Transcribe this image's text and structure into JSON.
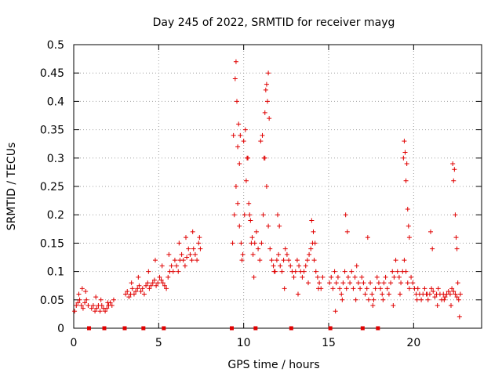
{
  "chart_data": {
    "type": "scatter",
    "title": "Day 245 of 2022, SRMTID for receiver mayg",
    "xlabel": "GPS time / hours",
    "ylabel": "SRMTID / TECUs",
    "xlim": [
      0,
      24
    ],
    "ylim": [
      0,
      0.5
    ],
    "xticks": [
      0,
      5,
      10,
      15,
      20
    ],
    "yticks": [
      0,
      0.05,
      0.1,
      0.15,
      0.2,
      0.25,
      0.3,
      0.35,
      0.4,
      0.45,
      0.5
    ],
    "grid": true,
    "marker": "+",
    "color": "#e00000",
    "gap_markers_x": [
      0.9,
      1.8,
      3.0,
      4.1,
      5.3,
      9.3,
      10.7,
      12.8,
      15.1,
      17.0,
      17.9
    ],
    "series": [
      {
        "name": "SRMTID",
        "x": [
          0.05,
          0.15,
          0.25,
          0.35,
          0.45,
          0.55,
          0.65,
          0.75,
          0.85,
          1.05,
          1.15,
          1.25,
          1.35,
          1.45,
          1.55,
          1.65,
          1.75,
          1.85,
          1.95,
          2.05,
          2.15,
          2.25,
          2.35,
          3.05,
          3.15,
          3.25,
          3.35,
          3.45,
          3.55,
          3.65,
          3.75,
          3.85,
          3.95,
          4.05,
          4.15,
          4.25,
          4.35,
          4.45,
          4.55,
          4.65,
          4.75,
          4.85,
          4.95,
          5.05,
          5.15,
          5.25,
          5.35,
          5.45,
          5.55,
          5.65,
          5.75,
          5.85,
          5.95,
          6.05,
          6.15,
          6.25,
          6.35,
          6.45,
          6.55,
          6.65,
          6.75,
          6.85,
          6.95,
          7.05,
          7.15,
          7.25,
          7.35,
          7.45,
          9.35,
          9.45,
          9.55,
          9.65,
          9.75,
          9.85,
          9.95,
          10.05,
          10.15,
          10.25,
          10.35,
          10.45,
          10.55,
          10.65,
          10.75,
          10.85,
          10.95,
          11.05,
          11.15,
          11.25,
          11.35,
          11.45,
          11.55,
          11.65,
          11.75,
          11.85,
          11.95,
          12.05,
          12.15,
          12.25,
          12.35,
          12.45,
          12.55,
          12.65,
          12.75,
          12.85,
          12.95,
          13.05,
          13.15,
          13.25,
          13.35,
          13.45,
          13.55,
          13.65,
          13.75,
          13.85,
          13.95,
          14.05,
          14.15,
          14.25,
          14.35,
          14.45,
          14.55,
          14.65,
          15.05,
          15.15,
          15.25,
          15.35,
          15.45,
          15.55,
          15.65,
          15.75,
          15.85,
          15.95,
          16.05,
          16.15,
          16.25,
          16.35,
          16.45,
          16.55,
          16.65,
          16.75,
          16.85,
          16.95,
          17.05,
          17.15,
          17.25,
          17.35,
          17.45,
          17.55,
          17.65,
          17.75,
          17.85,
          17.95,
          18.05,
          18.15,
          18.25,
          18.35,
          18.45,
          18.55,
          18.65,
          18.75,
          18.85,
          18.95,
          19.05,
          19.15,
          19.25,
          19.35,
          19.45,
          19.55,
          19.65,
          19.75,
          19.85,
          19.95,
          20.05,
          20.15,
          20.25,
          20.35,
          20.45,
          20.55,
          20.65,
          20.75,
          20.85,
          20.95,
          21.05,
          21.15,
          21.25,
          21.35,
          21.45,
          21.55,
          21.65,
          21.75,
          21.85,
          21.95,
          22.05,
          22.15,
          22.25,
          22.35,
          22.45,
          22.55,
          22.65,
          22.75,
          9.4,
          9.5,
          9.55,
          9.6,
          9.65,
          9.7,
          9.75,
          9.8,
          10.0,
          10.1,
          10.2,
          10.3,
          10.4,
          10.5,
          11.0,
          11.1,
          11.2,
          11.25,
          11.3,
          11.35,
          11.4,
          11.45,
          11.5,
          12.0,
          12.1,
          14.0,
          14.1,
          14.2,
          16.0,
          16.1,
          17.3,
          19.4,
          19.45,
          19.5,
          19.55,
          19.6,
          19.65,
          19.7,
          19.75,
          21.0,
          21.1,
          22.3,
          22.35,
          22.4,
          22.45,
          22.5,
          22.55,
          22.6,
          0.3,
          0.5,
          0.7,
          1.3,
          1.6,
          2.0,
          3.4,
          3.8,
          4.4,
          4.8,
          5.2,
          5.6,
          6.2,
          6.6,
          7.0,
          7.4,
          9.9,
          10.6,
          11.8,
          12.4,
          13.2,
          13.8,
          14.4,
          15.4,
          15.8,
          16.6,
          17.6,
          18.2,
          18.8,
          19.2,
          20.2,
          20.8,
          21.4,
          21.8,
          22.2,
          22.7
        ],
        "y": [
          0.03,
          0.04,
          0.045,
          0.05,
          0.04,
          0.035,
          0.045,
          0.05,
          0.04,
          0.035,
          0.04,
          0.03,
          0.035,
          0.04,
          0.03,
          0.04,
          0.035,
          0.03,
          0.035,
          0.04,
          0.045,
          0.04,
          0.05,
          0.06,
          0.065,
          0.055,
          0.06,
          0.07,
          0.06,
          0.065,
          0.07,
          0.075,
          0.065,
          0.07,
          0.06,
          0.075,
          0.08,
          0.07,
          0.075,
          0.08,
          0.085,
          0.075,
          0.08,
          0.09,
          0.085,
          0.08,
          0.075,
          0.07,
          0.09,
          0.1,
          0.11,
          0.1,
          0.12,
          0.11,
          0.1,
          0.12,
          0.13,
          0.12,
          0.11,
          0.125,
          0.14,
          0.13,
          0.12,
          0.14,
          0.13,
          0.12,
          0.15,
          0.14,
          0.15,
          0.2,
          0.25,
          0.22,
          0.18,
          0.15,
          0.13,
          0.2,
          0.26,
          0.3,
          0.2,
          0.15,
          0.13,
          0.15,
          0.17,
          0.14,
          0.12,
          0.15,
          0.2,
          0.3,
          0.25,
          0.18,
          0.14,
          0.12,
          0.11,
          0.1,
          0.12,
          0.13,
          0.11,
          0.1,
          0.12,
          0.14,
          0.13,
          0.12,
          0.11,
          0.1,
          0.09,
          0.1,
          0.12,
          0.11,
          0.1,
          0.09,
          0.1,
          0.11,
          0.12,
          0.13,
          0.14,
          0.15,
          0.12,
          0.1,
          0.09,
          0.08,
          0.07,
          0.09,
          0.08,
          0.09,
          0.07,
          0.1,
          0.08,
          0.09,
          0.07,
          0.06,
          0.08,
          0.1,
          0.07,
          0.09,
          0.08,
          0.1,
          0.07,
          0.09,
          0.11,
          0.08,
          0.07,
          0.09,
          0.08,
          0.06,
          0.07,
          0.05,
          0.08,
          0.06,
          0.05,
          0.07,
          0.09,
          0.08,
          0.07,
          0.06,
          0.08,
          0.09,
          0.07,
          0.06,
          0.08,
          0.1,
          0.09,
          0.12,
          0.1,
          0.09,
          0.08,
          0.1,
          0.12,
          0.1,
          0.08,
          0.07,
          0.09,
          0.08,
          0.07,
          0.06,
          0.07,
          0.06,
          0.05,
          0.06,
          0.07,
          0.06,
          0.05,
          0.06,
          0.07,
          0.065,
          0.055,
          0.06,
          0.07,
          0.06,
          0.05,
          0.06,
          0.055,
          0.06,
          0.065,
          0.06,
          0.07,
          0.065,
          0.06,
          0.055,
          0.05,
          0.06,
          0.34,
          0.44,
          0.47,
          0.4,
          0.32,
          0.36,
          0.29,
          0.34,
          0.33,
          0.35,
          0.3,
          0.22,
          0.19,
          0.16,
          0.33,
          0.34,
          0.3,
          0.38,
          0.42,
          0.43,
          0.4,
          0.45,
          0.37,
          0.2,
          0.18,
          0.19,
          0.17,
          0.15,
          0.2,
          0.17,
          0.16,
          0.3,
          0.33,
          0.31,
          0.26,
          0.29,
          0.21,
          0.18,
          0.16,
          0.17,
          0.14,
          0.29,
          0.26,
          0.28,
          0.2,
          0.16,
          0.14,
          0.08,
          0.06,
          0.07,
          0.065,
          0.055,
          0.05,
          0.045,
          0.08,
          0.09,
          0.1,
          0.12,
          0.11,
          0.13,
          0.15,
          0.16,
          0.17,
          0.16,
          0.12,
          0.09,
          0.1,
          0.07,
          0.06,
          0.08,
          0.07,
          0.03,
          0.05,
          0.05,
          0.04,
          0.05,
          0.04,
          0.06,
          0.05,
          0.06,
          0.04,
          0.05,
          0.04,
          0.02
        ]
      }
    ]
  }
}
